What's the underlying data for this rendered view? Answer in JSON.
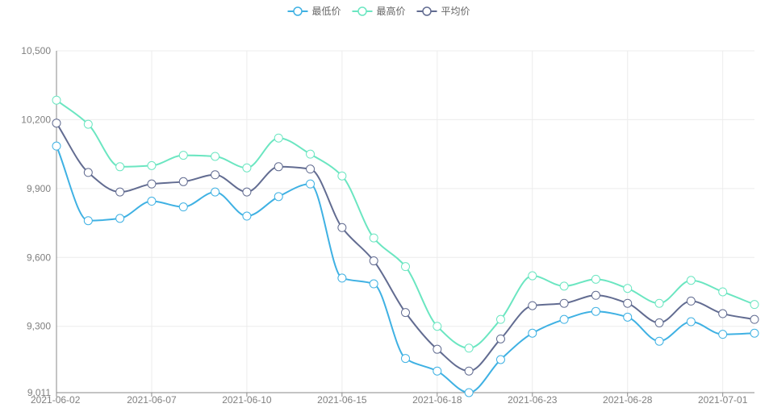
{
  "chart_data": {
    "type": "line",
    "title": "",
    "xlabel": "",
    "ylabel": "",
    "ylim": [
      9011,
      10500
    ],
    "y_ticks": [
      9011,
      9300,
      9600,
      9900,
      10200,
      10500
    ],
    "y_tick_labels": [
      "9,011",
      "9,300",
      "9,600",
      "9,900",
      "10,200",
      "10,500"
    ],
    "x_tick_labels": [
      "2021-06-02",
      "2021-06-07",
      "2021-06-10",
      "2021-06-15",
      "2021-06-18",
      "2021-06-23",
      "2021-06-28",
      "2021-07-01"
    ],
    "x_tick_index": [
      0,
      3,
      6,
      9,
      12,
      15,
      18,
      21
    ],
    "legend_position": "top-center",
    "grid": true,
    "smooth": true,
    "point_count": 23,
    "series": [
      {
        "name": "最低价",
        "color": "#3fb1e3",
        "values": [
          10085,
          9760,
          9770,
          9845,
          9820,
          9885,
          9780,
          9865,
          9920,
          9510,
          9485,
          9160,
          9105,
          9011,
          9155,
          9270,
          9330,
          9365,
          9340,
          9235,
          9320,
          9265,
          9270
        ]
      },
      {
        "name": "最高价",
        "color": "#6be6c1",
        "values": [
          10285,
          10180,
          9995,
          10000,
          10045,
          10040,
          9990,
          10120,
          10050,
          9955,
          9685,
          9560,
          9300,
          9205,
          9330,
          9520,
          9475,
          9505,
          9465,
          9400,
          9500,
          9450,
          9395
        ]
      },
      {
        "name": "平均价",
        "color": "#626c91",
        "values": [
          10185,
          9970,
          9885,
          9920,
          9930,
          9960,
          9885,
          9995,
          9985,
          9730,
          9585,
          9360,
          9200,
          9105,
          9245,
          9390,
          9400,
          9435,
          9400,
          9315,
          9410,
          9355,
          9330
        ]
      }
    ]
  }
}
